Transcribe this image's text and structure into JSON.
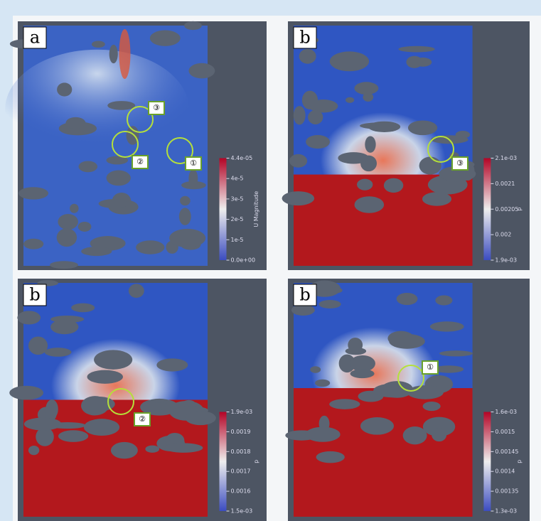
{
  "panels": [
    {
      "label": "a",
      "colorbar_title": "U Magnitude",
      "ticks": [
        "4.4e-05",
        "4e-5",
        "3e-5",
        "2e-5",
        "1e-5",
        "0.0e+00"
      ],
      "markers": [
        "③",
        "②",
        "①"
      ]
    },
    {
      "label": "b",
      "colorbar_title": "p",
      "ticks": [
        "2.1e-03",
        "0.0021",
        "0.00205",
        "0.002",
        "1.9e-03"
      ],
      "markers": [
        "③"
      ]
    },
    {
      "label": "b",
      "colorbar_title": "p",
      "ticks": [
        "1.9e-03",
        "0.0019",
        "0.0018",
        "0.0017",
        "0.0016",
        "1.5e-03"
      ],
      "markers": [
        "②"
      ]
    },
    {
      "label": "b",
      "colorbar_title": "p",
      "ticks": [
        "1.6e-03",
        "0.0015",
        "0.00145",
        "0.0014",
        "0.00135",
        "1.3e-03"
      ],
      "markers": [
        "①"
      ]
    }
  ]
}
